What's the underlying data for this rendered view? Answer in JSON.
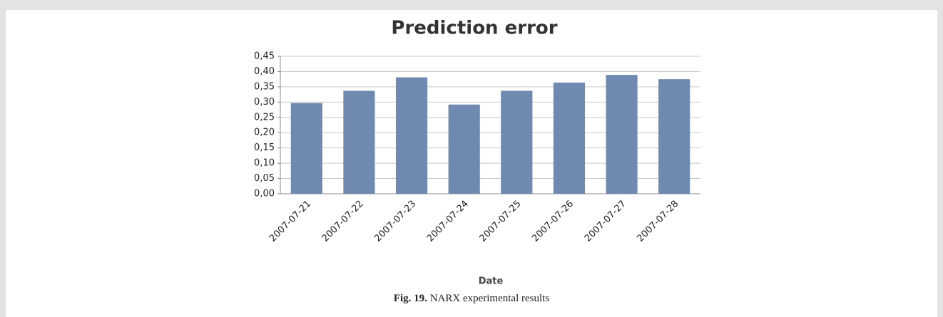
{
  "chart_data": {
    "type": "bar",
    "title": "Prediction error",
    "categories": [
      "2007-07-21",
      "2007-07-22",
      "2007-07-23",
      "2007-07-24",
      "2007-07-25",
      "2007-07-26",
      "2007-07-27",
      "2007-07-28"
    ],
    "values": [
      0.297,
      0.337,
      0.381,
      0.292,
      0.337,
      0.364,
      0.389,
      0.375
    ],
    "color": "#7089b0",
    "x_label": "Date",
    "ylim": [
      0,
      0.45
    ],
    "yticks": [
      {
        "value": 0,
        "label": "0,00"
      },
      {
        "value": 0.05,
        "label": "0,05"
      },
      {
        "value": 0.1,
        "label": "0,10"
      },
      {
        "value": 0.15,
        "label": "0,15"
      },
      {
        "value": 0.2,
        "label": "0,20"
      },
      {
        "value": 0.25,
        "label": "0,25"
      },
      {
        "value": 0.3,
        "label": "0,30"
      },
      {
        "value": 0.35,
        "label": "0,35"
      },
      {
        "value": 0.4,
        "label": "0,40"
      },
      {
        "value": 0.45,
        "label": "0,45"
      }
    ],
    "grid": true
  },
  "caption": {
    "label": "Fig. 19.",
    "text": "NARX experimental results"
  }
}
